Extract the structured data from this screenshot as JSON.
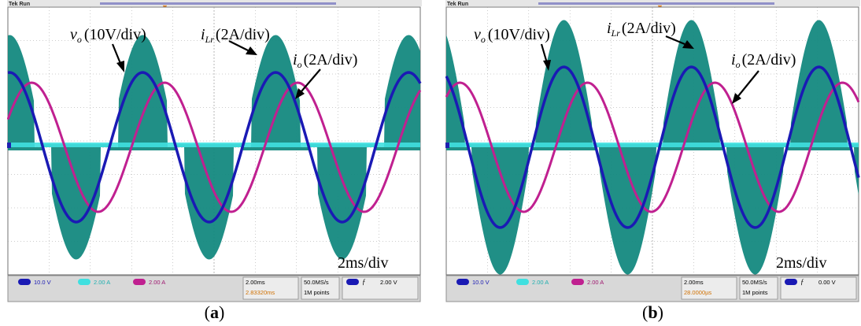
{
  "panels": [
    {
      "id": "a",
      "caption_letter": "a",
      "header_text": "Tek Run",
      "ann_vo_sym": "v",
      "ann_vo_sub": "o",
      "ann_vo_scale": "(10V/div)",
      "ann_iLr_sym": "i",
      "ann_iLr_sub": "Lr",
      "ann_iLr_scale": "(2A/div)",
      "ann_io_sym": "i",
      "ann_io_sub": "o",
      "ann_io_scale": "(2A/div)",
      "timebase": "2ms/div",
      "status": {
        "ch1": "10.0 V",
        "ch2": "2.00 A",
        "ch3": "2.00 A",
        "time": "2.00ms",
        "delay": "2.83320ms",
        "rate": "50.0MS/s",
        "points": "1M points",
        "trig_level": "2.00 V"
      }
    },
    {
      "id": "b",
      "caption_letter": "b",
      "header_text": "Tek Run",
      "ann_vo_sym": "v",
      "ann_vo_sub": "o",
      "ann_vo_scale": "(10V/div)",
      "ann_iLr_sym": "i",
      "ann_iLr_sub": "Lr",
      "ann_iLr_scale": "(2A/div)",
      "ann_io_sym": "i",
      "ann_io_sub": "o",
      "ann_io_scale": "(2A/div)",
      "timebase": "2ms/div",
      "status": {
        "ch1": "10.0 V",
        "ch2": "2.00 A",
        "ch3": "2.00 A",
        "time": "2.00ms",
        "delay": "28.0000µs",
        "rate": "50.0MS/s",
        "points": "1M points",
        "trig_level": "0.00 V"
      }
    }
  ],
  "colors": {
    "ch1_vo": "#1a1ab4",
    "ch2_io": "#40e0e0",
    "ch3_io": "#c02090",
    "ch4_iLr": "#14897f",
    "grid": "#9a9a9a",
    "statusbar": "#d8d8d8"
  }
}
